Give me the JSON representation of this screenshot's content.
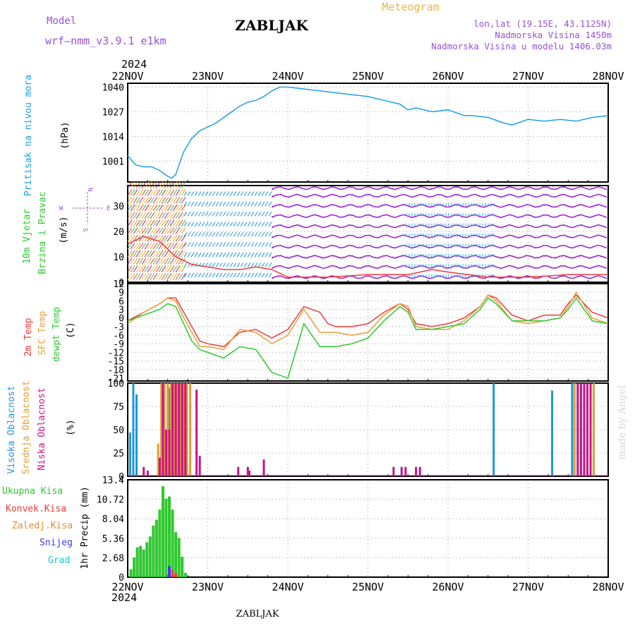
{
  "header": {
    "model_label": "Model",
    "model_name": "wrf—nmm_v3.9.1  e1km",
    "station_title": "ZABLJAK",
    "meteogram_label": "Meteogram",
    "lonlat": "lon,lat (19.15E, 43.1125N)",
    "altitude": "Nadmorska Visina 1450m",
    "altitude_model": "Nadmorska Visina u modelu 1406.03m"
  },
  "footer": {
    "station": "ZABLJAK"
  },
  "watermark": "made by Angel",
  "colors": {
    "pressure": "#1ea0e6",
    "t2m": "#f03a3a",
    "sfc": "#e6a03a",
    "dew": "#2ec82e",
    "high_cloud": "#1e96dc",
    "mid_cloud": "#e0a030",
    "low_cloud": "#c8148c",
    "total_precip": "#2ec82e",
    "conv": "#f03a3a",
    "frozen": "#f08c28",
    "snow": "#3c3ce0",
    "graupel": "#1ec8c8",
    "wind_purple": "#9a28d2"
  },
  "time_axis": {
    "year": "2024",
    "ticks": [
      "22NOV",
      "23NOV",
      "24NOV",
      "25NOV",
      "26NOV",
      "27NOV",
      "28NOV"
    ]
  },
  "panels": {
    "pressure": {
      "title": "Pritisak na nivou mora",
      "unit": "(hPa)"
    },
    "wind": {
      "title_line1": "10m Vjetar",
      "title_line2": "Brzina i Pravac",
      "unit": "(m/s)",
      "compass": {
        "n": "N",
        "e": "E",
        "w": "W",
        "s": "S"
      }
    },
    "temperature": {
      "label_t2m": "2m Temp",
      "label_sfc": "SFC Temp",
      "label_dew": "dewpt Temp",
      "unit": "(C)"
    },
    "clouds": {
      "label_high": "Visoka Oblacnost",
      "label_mid": "Srednja Oblacnost",
      "label_low": "Niska Oblacnost",
      "unit": "(%)"
    },
    "precip": {
      "label_total": "Ukupna Kisa",
      "label_conv": "Konvek.Kisa",
      "label_frozen": "Zaledj.Kisa",
      "label_snow": "Snijeg",
      "label_graupel": "Grad",
      "unit": "1hr Precip (mm)"
    }
  },
  "chart_data": [
    {
      "type": "line",
      "panel": "pressure",
      "x_unit": "days since 22NOV 00UTC",
      "xlim": [
        0,
        6
      ],
      "yticks": [
        "1040",
        "1027",
        "1014",
        "1001"
      ],
      "ylim": [
        990,
        1042
      ],
      "series": [
        {
          "name": "Pritisak na nivou mora",
          "color": "#1ea0e6",
          "x": [
            0,
            0.1,
            0.2,
            0.3,
            0.4,
            0.5,
            0.55,
            0.6,
            0.7,
            0.8,
            0.9,
            1.0,
            1.1,
            1.2,
            1.3,
            1.4,
            1.5,
            1.6,
            1.7,
            1.8,
            1.9,
            2.0,
            2.2,
            2.4,
            2.6,
            2.8,
            3.0,
            3.2,
            3.4,
            3.5,
            3.6,
            3.8,
            4.0,
            4.2,
            4.3,
            4.5,
            4.7,
            4.8,
            5.0,
            5.2,
            5.4,
            5.6,
            5.8,
            6.0
          ],
          "y": [
            1004,
            999,
            998,
            998,
            996,
            993,
            992,
            994,
            1006,
            1013,
            1017,
            1019,
            1021,
            1024,
            1027,
            1030,
            1032,
            1033,
            1035,
            1038,
            1040,
            1040,
            1039,
            1038,
            1037,
            1036,
            1035,
            1033,
            1031,
            1028,
            1029,
            1027,
            1028,
            1025,
            1025,
            1024,
            1021,
            1020,
            1023,
            1022,
            1023,
            1022,
            1024,
            1025
          ]
        }
      ]
    },
    {
      "type": "line",
      "panel": "wind",
      "x_unit": "days since 22NOV 00UTC",
      "xlim": [
        0,
        6
      ],
      "yticks": [
        "30",
        "20",
        "10",
        "0"
      ],
      "ylim": [
        0,
        38
      ],
      "series": [
        {
          "name": "Brzina",
          "color": "#f03a3a",
          "x": [
            0,
            0.2,
            0.4,
            0.6,
            0.8,
            1.0,
            1.2,
            1.4,
            1.6,
            1.8,
            2.0,
            2.5,
            3.0,
            3.5,
            3.8,
            4.0,
            4.5,
            5.0,
            5.5,
            6.0
          ],
          "y": [
            15,
            18,
            16,
            10,
            7,
            6,
            5,
            5,
            6,
            5,
            2,
            2,
            3,
            3,
            5,
            4,
            2,
            2,
            3,
            3
          ]
        }
      ]
    },
    {
      "type": "line",
      "panel": "temperature",
      "x_unit": "days since 22NOV 00UTC",
      "xlim": [
        0,
        6
      ],
      "yticks": [
        "12",
        "9",
        "6",
        "3",
        "0",
        "-3",
        "-6",
        "-9",
        "-12",
        "-15",
        "-18",
        "-21"
      ],
      "ylim": [
        -22,
        12
      ],
      "series": [
        {
          "name": "2m Temp",
          "color": "#f03a3a",
          "x": [
            0,
            0.2,
            0.4,
            0.5,
            0.6,
            0.7,
            0.8,
            0.9,
            1.0,
            1.2,
            1.4,
            1.6,
            1.8,
            2.0,
            2.2,
            2.4,
            2.5,
            2.6,
            2.8,
            3.0,
            3.2,
            3.4,
            3.5,
            3.6,
            3.8,
            4.0,
            4.2,
            4.4,
            4.5,
            4.6,
            4.8,
            5.0,
            5.2,
            5.4,
            5.5,
            5.6,
            5.8,
            6.0
          ],
          "y": [
            -1,
            2,
            5,
            7,
            7,
            2,
            -3,
            -8,
            -9,
            -10,
            -5,
            -4,
            -7,
            -4,
            4,
            2,
            -2,
            -3,
            -3,
            -2,
            2,
            5,
            3,
            -2,
            -3,
            -2,
            0,
            4,
            8,
            7,
            1,
            -1,
            1,
            1,
            5,
            8,
            2,
            0
          ]
        },
        {
          "name": "SFC Temp",
          "color": "#e6a03a",
          "x": [
            0,
            0.2,
            0.4,
            0.5,
            0.6,
            0.7,
            0.8,
            0.9,
            1.0,
            1.2,
            1.4,
            1.6,
            1.8,
            2.0,
            2.2,
            2.4,
            2.5,
            2.6,
            2.8,
            3.0,
            3.2,
            3.4,
            3.5,
            3.6,
            3.8,
            4.0,
            4.2,
            4.4,
            4.5,
            4.6,
            4.8,
            5.0,
            5.2,
            5.4,
            5.5,
            5.6,
            5.8,
            6.0
          ],
          "y": [
            -2,
            2,
            5,
            7,
            6,
            0,
            -5,
            -10,
            -10,
            -11,
            -4,
            -5,
            -9,
            -6,
            3,
            -5,
            -5,
            -5,
            -6,
            -5,
            1,
            5,
            4,
            -3,
            -4,
            -4,
            -1,
            4,
            8,
            6,
            -1,
            -2,
            -1,
            0,
            4,
            9,
            0,
            -2
          ]
        },
        {
          "name": "dewpt Temp",
          "color": "#2ec82e",
          "x": [
            0,
            0.2,
            0.4,
            0.5,
            0.6,
            0.7,
            0.8,
            0.9,
            1.0,
            1.2,
            1.4,
            1.6,
            1.8,
            2.0,
            2.2,
            2.4,
            2.5,
            2.6,
            2.8,
            3.0,
            3.2,
            3.4,
            3.5,
            3.6,
            3.8,
            4.0,
            4.2,
            4.4,
            4.5,
            4.6,
            4.8,
            5.0,
            5.2,
            5.4,
            5.5,
            5.6,
            5.8,
            6.0
          ],
          "y": [
            -1,
            1,
            3,
            5,
            4,
            -2,
            -8,
            -11,
            -12,
            -14,
            -10,
            -11,
            -19,
            -21,
            -2,
            -10,
            -10,
            -10,
            -9,
            -7,
            -1,
            4,
            2,
            -4,
            -4,
            -3,
            -2,
            3,
            7,
            5,
            -1,
            -1,
            -1,
            0,
            3,
            7,
            -1,
            -2
          ]
        }
      ]
    },
    {
      "type": "bar",
      "panel": "clouds",
      "x_unit": "days since 22NOV 00UTC",
      "xlim": [
        0,
        6
      ],
      "yticks": [
        "100",
        "75",
        "50",
        "25",
        "0"
      ],
      "ylim": [
        0,
        100
      ],
      "series": [
        {
          "name": "Visoka Oblacnost",
          "color": "#1e96dc",
          "x": [
            0.03,
            0.07,
            0.11,
            0.42,
            0.5,
            0.52,
            4.57,
            5.3,
            5.55,
            5.62
          ],
          "y": [
            47,
            100,
            88,
            45,
            100,
            95,
            100,
            92,
            100,
            100
          ]
        },
        {
          "name": "Srednja Oblacnost",
          "color": "#e0a030",
          "x": [
            0.38,
            0.42,
            0.46,
            0.5,
            0.54,
            0.58,
            0.62,
            0.66,
            0.7,
            0.74,
            0.78,
            5.58,
            5.62,
            5.66,
            5.7,
            5.74,
            5.78,
            5.82
          ],
          "y": [
            35,
            100,
            100,
            100,
            100,
            100,
            100,
            100,
            100,
            100,
            100,
            100,
            100,
            100,
            100,
            100,
            100,
            100
          ]
        },
        {
          "name": "Niska Oblacnost",
          "color": "#c8148c",
          "x": [
            0.2,
            0.25,
            0.4,
            0.44,
            0.48,
            0.52,
            0.56,
            0.6,
            0.64,
            0.68,
            0.72,
            0.86,
            0.9,
            1.38,
            1.5,
            1.52,
            1.7,
            3.32,
            3.42,
            3.47,
            3.6,
            3.65,
            5.62,
            5.66,
            5.7,
            5.74,
            5.78
          ],
          "y": [
            10,
            6,
            20,
            100,
            50,
            50,
            100,
            100,
            100,
            100,
            100,
            93,
            22,
            10,
            10,
            6,
            18,
            10,
            10,
            10,
            10,
            10,
            100,
            100,
            100,
            100,
            100
          ]
        }
      ]
    },
    {
      "type": "bar",
      "panel": "precip",
      "x_unit": "days since 22NOV 00UTC",
      "xlim": [
        0,
        6
      ],
      "yticks": [
        "13.4",
        "10.72",
        "8.04",
        "5.36",
        "2.68",
        "0"
      ],
      "ylim": [
        0,
        13.4
      ],
      "series": [
        {
          "name": "Ukupna Kisa",
          "color": "#2ec82e",
          "x": [
            0.04,
            0.08,
            0.12,
            0.16,
            0.2,
            0.24,
            0.28,
            0.32,
            0.36,
            0.4,
            0.44,
            0.48,
            0.52,
            0.56,
            0.6,
            0.64,
            0.68,
            0.72
          ],
          "y": [
            1.1,
            2.7,
            4.1,
            4.3,
            3.8,
            4.8,
            5.6,
            7.1,
            7.9,
            9.3,
            12.5,
            10.8,
            11.1,
            9.3,
            6.2,
            5.4,
            2.8,
            0.6
          ]
        },
        {
          "name": "Konvek.Kisa",
          "color": "#f03a3a",
          "x": [
            0.56,
            0.6
          ],
          "y": [
            1.0,
            0.5
          ]
        },
        {
          "name": "Snijeg",
          "color": "#3c3ce0",
          "x": [
            0.52
          ],
          "y": [
            1.5
          ]
        }
      ]
    }
  ]
}
